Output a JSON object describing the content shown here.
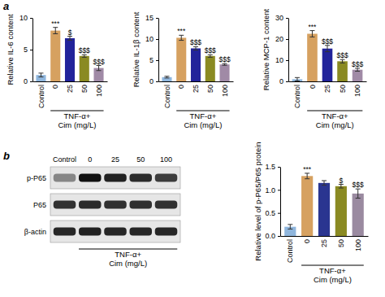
{
  "panel_labels": [
    "a",
    "b"
  ],
  "chart_data": [
    {
      "type": "bar",
      "y_label": "Relative IL-6 content",
      "categories": [
        "Control",
        "0",
        "25",
        "50",
        "100"
      ],
      "values": [
        1.0,
        8.0,
        6.8,
        4.0,
        2.1
      ],
      "errors": [
        0.3,
        0.5,
        0.3,
        0.2,
        0.4
      ],
      "significance": [
        null,
        "***",
        "$",
        "$$$",
        "$$$"
      ],
      "x_group_label": [
        "TNF-α+",
        "Cim (mg/L)"
      ],
      "colors": [
        "#8fb6dd",
        "#d6a160",
        "#22239a",
        "#8a8a22",
        "#a08aa6"
      ],
      "ylim": [
        0,
        10
      ],
      "yticks": [
        0,
        5,
        10
      ]
    },
    {
      "type": "bar",
      "y_label": "Relative IL-1β content",
      "categories": [
        "Control",
        "0",
        "25",
        "50",
        "100"
      ],
      "values": [
        1.0,
        10.3,
        7.8,
        6.0,
        4.0
      ],
      "errors": [
        0.2,
        0.6,
        0.4,
        0.3,
        0.2
      ],
      "significance": [
        null,
        "***",
        "$$$",
        "$$$",
        "$$$"
      ],
      "x_group_label": [
        "TNF-α+",
        "Cim (mg/L)"
      ],
      "colors": [
        "#8fb6dd",
        "#d6a160",
        "#22239a",
        "#8a8a22",
        "#a08aa6"
      ],
      "ylim": [
        0,
        15
      ],
      "yticks": [
        0,
        5,
        10,
        15
      ]
    },
    {
      "type": "bar",
      "y_label": "Relative MCP-1 content",
      "categories": [
        "Control",
        "0",
        "25",
        "50",
        "100"
      ],
      "values": [
        1.0,
        22.5,
        15.5,
        9.5,
        5.5
      ],
      "errors": [
        0.8,
        1.5,
        1.5,
        0.8,
        0.7
      ],
      "significance": [
        null,
        "***",
        "$$$",
        "$$$",
        "$$$"
      ],
      "x_group_label": [
        "TNF-α+",
        "Cim (mg/L)"
      ],
      "colors": [
        "#8fb6dd",
        "#d6a160",
        "#22239a",
        "#8a8a22",
        "#a08aa6"
      ],
      "ylim": [
        0,
        30
      ],
      "yticks": [
        0,
        10,
        20,
        30
      ]
    },
    {
      "type": "bar",
      "y_label": "Relative level of p-P65/P65 protein",
      "categories": [
        "Control",
        "0",
        "25",
        "50",
        "100"
      ],
      "values": [
        0.2,
        1.3,
        1.15,
        1.08,
        0.92
      ],
      "errors": [
        0.05,
        0.06,
        0.05,
        0.04,
        0.1
      ],
      "significance": [
        null,
        "***",
        null,
        "$",
        "$$$"
      ],
      "x_group_label": [
        "TNF-α+",
        "Cim (mg/L)"
      ],
      "colors": [
        "#8fb6dd",
        "#d6a160",
        "#2a3590",
        "#8a8a22",
        "#9a8aa0"
      ],
      "ylim": [
        0,
        1.5
      ],
      "yticks": [
        {
          "value": 0,
          "label": "0.0"
        },
        {
          "value": 0.5,
          "label": "0.5"
        },
        {
          "value": 1,
          "label": "1.0"
        },
        {
          "value": 1.5,
          "label": "1.5"
        }
      ]
    }
  ],
  "blot": {
    "lanes": [
      "Control",
      "0",
      "25",
      "50",
      "100"
    ],
    "rows": [
      {
        "label": "p-P65",
        "intensity": [
          0.45,
          1.0,
          0.92,
          0.88,
          0.8
        ]
      },
      {
        "label": "P65",
        "intensity": [
          0.85,
          0.88,
          0.86,
          0.86,
          0.85
        ]
      },
      {
        "label": "β-actin",
        "intensity": [
          0.9,
          0.92,
          0.9,
          0.9,
          0.9
        ]
      }
    ],
    "x_group_label": [
      "TNF-α+",
      "Cim (mg/L)"
    ]
  }
}
